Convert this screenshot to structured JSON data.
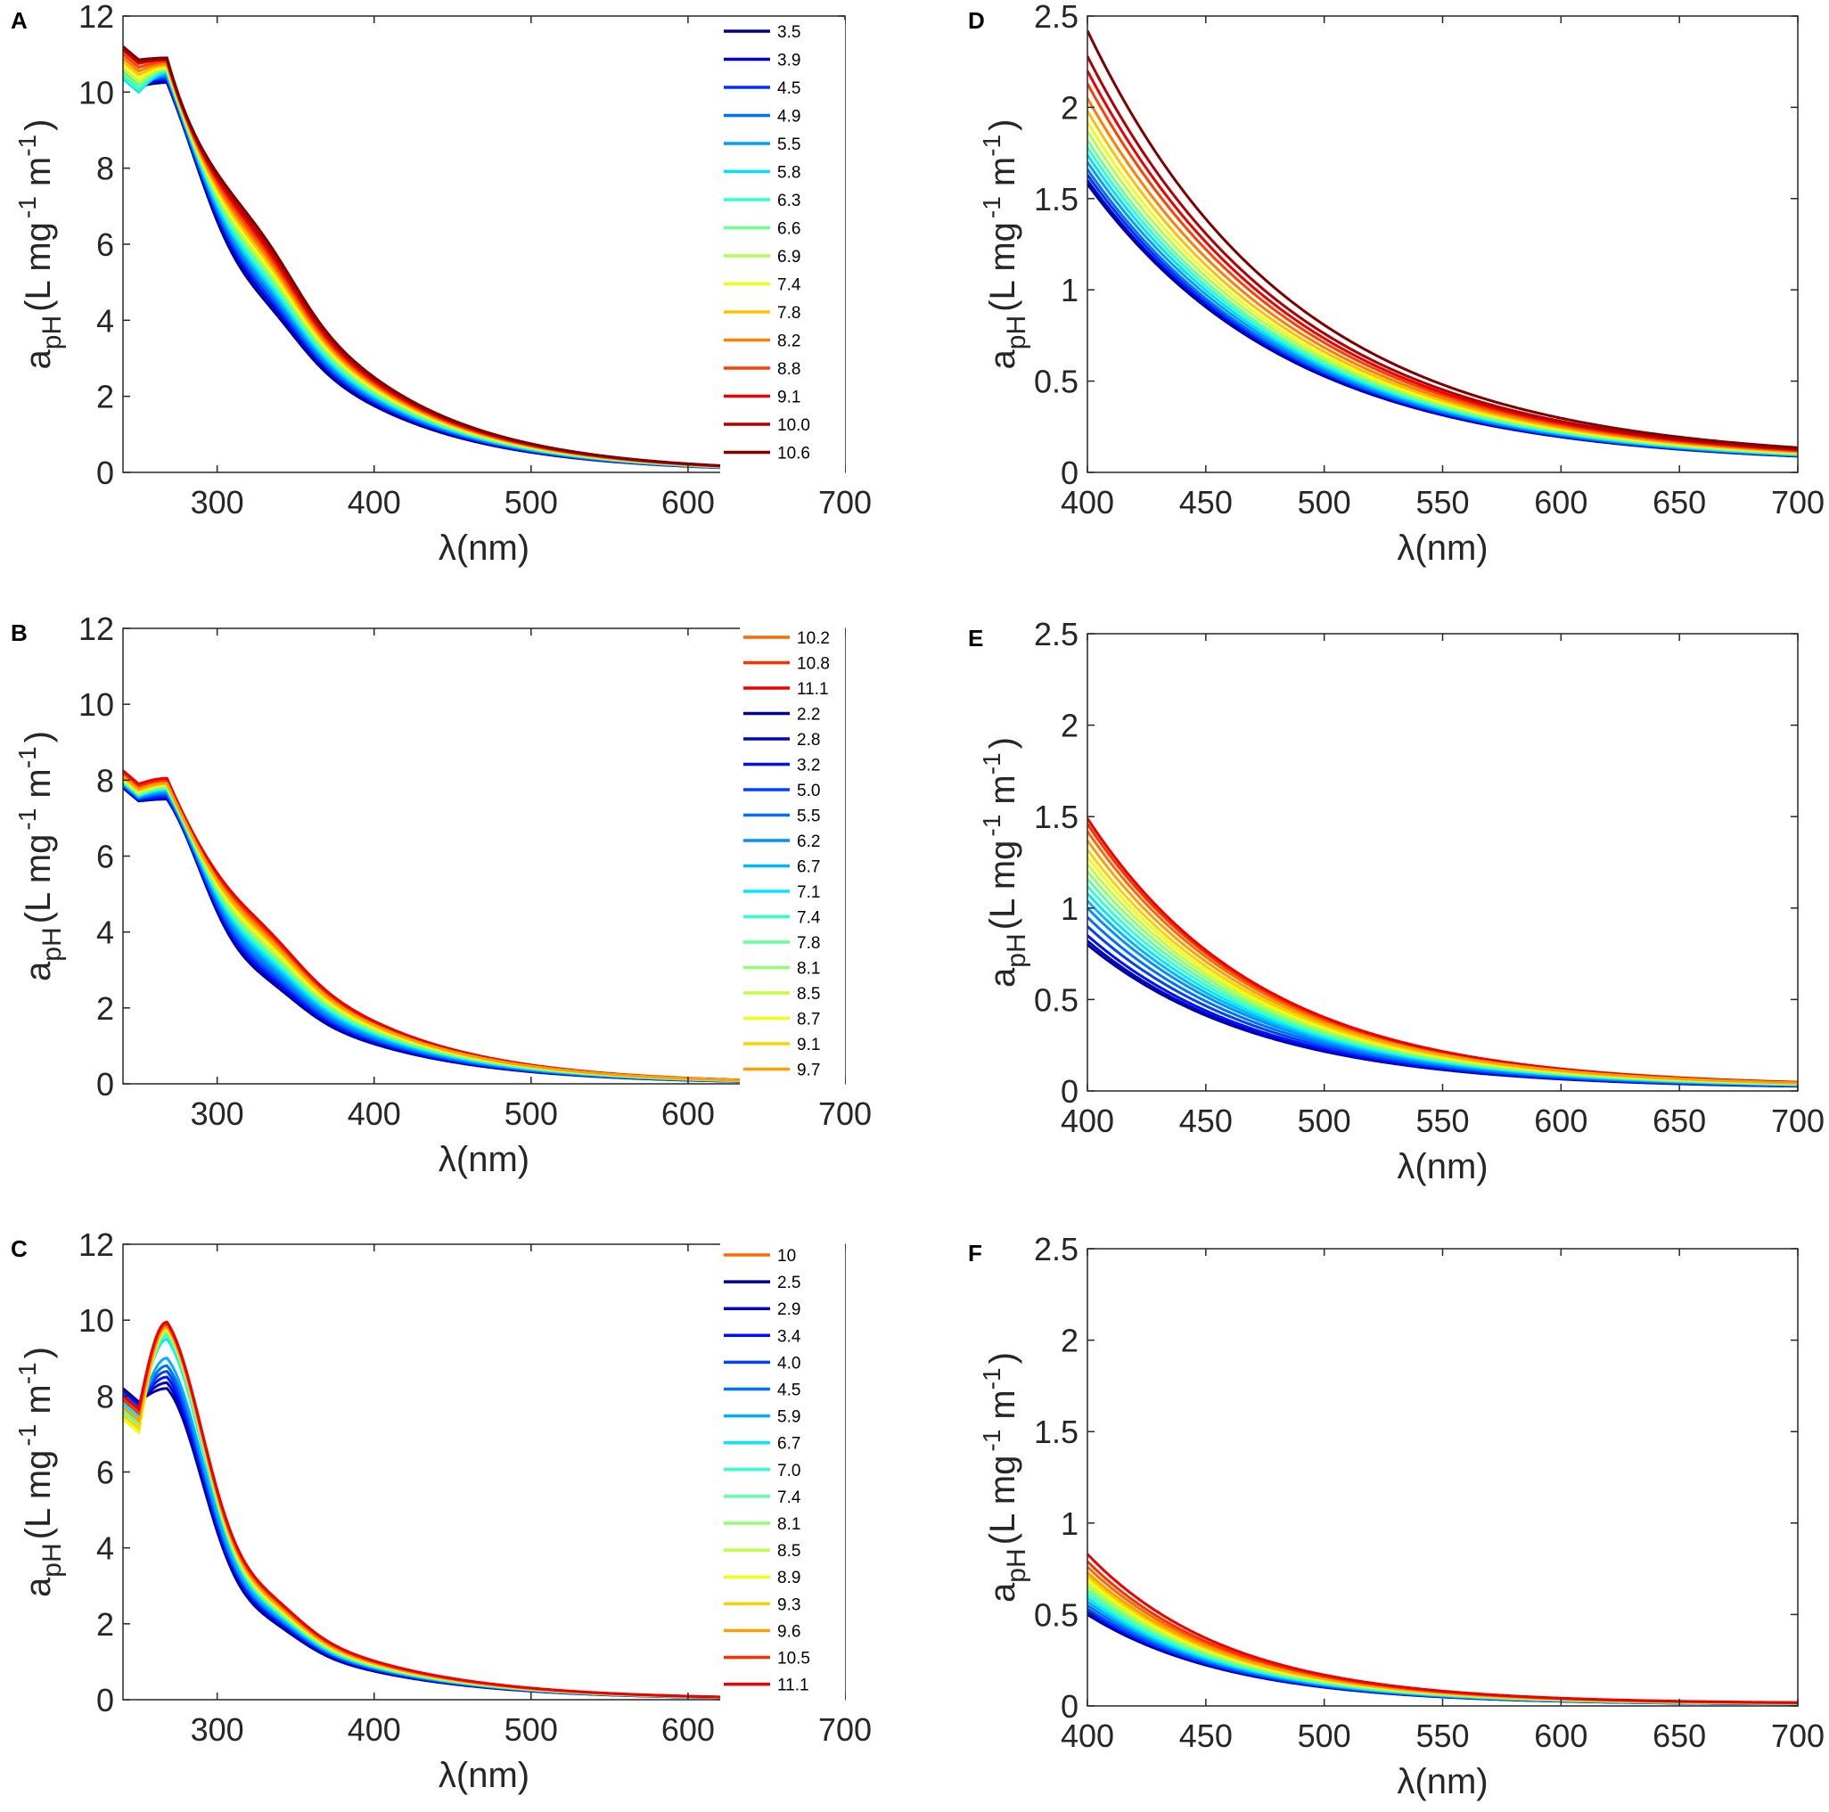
{
  "figure": {
    "panels": [
      "A",
      "B",
      "C",
      "D",
      "E",
      "F"
    ]
  },
  "chart_data": [
    {
      "id": "A",
      "panel_label": "A",
      "type": "line",
      "xlabel": "λ(nm)",
      "ylabel_main": "a",
      "ylabel_sub": "pH",
      "ylabel_units": "(L mg",
      "ylabel_sup1": "-1",
      "ylabel_m": " m",
      "ylabel_sup2": "-1",
      "ylabel_close": ")",
      "xlim": [
        240,
        700
      ],
      "ylim": [
        0,
        12
      ],
      "xticks": [
        300,
        400,
        500,
        600,
        700
      ],
      "yticks": [
        0,
        2,
        4,
        6,
        8,
        10,
        12
      ],
      "xtick_labels": [
        "300",
        "400",
        "500",
        "600",
        "700"
      ],
      "ytick_labels": [
        "0",
        "2",
        "4",
        "6",
        "8",
        "10",
        "12"
      ],
      "model": "uv",
      "legend_position": "top-right",
      "series": [
        {
          "name": "3.5",
          "color": "#00008f",
          "a240": 10.5,
          "peak": 10.25,
          "c400": 1.75
        },
        {
          "name": "3.9",
          "color": "#0000d9",
          "a240": 10.55,
          "peak": 10.3,
          "c400": 1.8
        },
        {
          "name": "4.5",
          "color": "#0030ff",
          "a240": 10.6,
          "peak": 10.35,
          "c400": 1.85
        },
        {
          "name": "4.9",
          "color": "#0070ff",
          "a240": 10.55,
          "peak": 10.4,
          "c400": 1.9
        },
        {
          "name": "5.5",
          "color": "#00a0ff",
          "a240": 10.4,
          "peak": 10.45,
          "c400": 1.95
        },
        {
          "name": "5.8",
          "color": "#00e0ff",
          "a240": 10.35,
          "peak": 10.5,
          "c400": 2.0
        },
        {
          "name": "6.3",
          "color": "#30ffd0",
          "a240": 10.4,
          "peak": 10.55,
          "c400": 2.05
        },
        {
          "name": "6.6",
          "color": "#70ff90",
          "a240": 10.5,
          "peak": 10.6,
          "c400": 2.1
        },
        {
          "name": "6.9",
          "color": "#b0ff50",
          "a240": 10.6,
          "peak": 10.6,
          "c400": 2.15
        },
        {
          "name": "7.4",
          "color": "#f0ff10",
          "a240": 10.7,
          "peak": 10.65,
          "c400": 2.2
        },
        {
          "name": "7.8",
          "color": "#ffc000",
          "a240": 10.8,
          "peak": 10.7,
          "c400": 2.25
        },
        {
          "name": "8.2",
          "color": "#ff8000",
          "a240": 10.9,
          "peak": 10.75,
          "c400": 2.3
        },
        {
          "name": "8.8",
          "color": "#ff4000",
          "a240": 11.0,
          "peak": 10.8,
          "c400": 2.35
        },
        {
          "name": "9.1",
          "color": "#ee0000",
          "a240": 11.1,
          "peak": 10.85,
          "c400": 2.4
        },
        {
          "name": "10.0",
          "color": "#b00000",
          "a240": 11.15,
          "peak": 10.85,
          "c400": 2.45
        },
        {
          "name": "10.6",
          "color": "#800000",
          "a240": 11.2,
          "peak": 10.9,
          "c400": 2.5
        }
      ]
    },
    {
      "id": "B",
      "panel_label": "B",
      "type": "line",
      "xlabel": "λ(nm)",
      "ylabel_main": "a",
      "ylabel_sub": "pH",
      "ylabel_units": "(L mg",
      "ylabel_sup1": "-1",
      "ylabel_m": " m",
      "ylabel_sup2": "-1",
      "ylabel_close": ")",
      "xlim": [
        240,
        700
      ],
      "ylim": [
        0,
        12
      ],
      "xticks": [
        300,
        400,
        500,
        600,
        700
      ],
      "yticks": [
        0,
        2,
        4,
        6,
        8,
        10,
        12
      ],
      "xtick_labels": [
        "300",
        "400",
        "500",
        "600",
        "700"
      ],
      "ytick_labels": [
        "0",
        "2",
        "4",
        "6",
        "8",
        "10",
        "12"
      ],
      "model": "uv",
      "legend_position": "top-right",
      "series": [
        {
          "name": "10.2",
          "color": "#ff6a00",
          "a240": 8.15,
          "peak": 7.95,
          "c400": 1.58
        },
        {
          "name": "10.8",
          "color": "#ff3000",
          "a240": 8.2,
          "peak": 8.0,
          "c400": 1.62
        },
        {
          "name": "11.1",
          "color": "#ee0000",
          "a240": 8.25,
          "peak": 8.05,
          "c400": 1.65
        },
        {
          "name": "2.2",
          "color": "#00008f",
          "a240": 7.8,
          "peak": 7.5,
          "c400": 1.05
        },
        {
          "name": "2.8",
          "color": "#0000cc",
          "a240": 7.82,
          "peak": 7.52,
          "c400": 1.08
        },
        {
          "name": "3.2",
          "color": "#0010ff",
          "a240": 7.84,
          "peak": 7.55,
          "c400": 1.11
        },
        {
          "name": "5.0",
          "color": "#0040ff",
          "a240": 7.86,
          "peak": 7.6,
          "c400": 1.15
        },
        {
          "name": "5.5",
          "color": "#0070ff",
          "a240": 7.88,
          "peak": 7.65,
          "c400": 1.19
        },
        {
          "name": "6.2",
          "color": "#0090ff",
          "a240": 7.9,
          "peak": 7.68,
          "c400": 1.23
        },
        {
          "name": "6.7",
          "color": "#00b8ff",
          "a240": 7.92,
          "peak": 7.72,
          "c400": 1.27
        },
        {
          "name": "7.1",
          "color": "#00e8ff",
          "a240": 7.94,
          "peak": 7.75,
          "c400": 1.31
        },
        {
          "name": "7.4",
          "color": "#30ffd0",
          "a240": 7.96,
          "peak": 7.78,
          "c400": 1.35
        },
        {
          "name": "7.8",
          "color": "#60ffa0",
          "a240": 7.98,
          "peak": 7.8,
          "c400": 1.38
        },
        {
          "name": "8.1",
          "color": "#90ff70",
          "a240": 8.0,
          "peak": 7.83,
          "c400": 1.42
        },
        {
          "name": "8.5",
          "color": "#c0ff40",
          "a240": 8.02,
          "peak": 7.86,
          "c400": 1.45
        },
        {
          "name": "8.7",
          "color": "#f0ff10",
          "a240": 8.05,
          "peak": 7.88,
          "c400": 1.49
        },
        {
          "name": "9.1",
          "color": "#ffd000",
          "a240": 8.08,
          "peak": 7.9,
          "c400": 1.52
        },
        {
          "name": "9.7",
          "color": "#ffa000",
          "a240": 8.1,
          "peak": 7.92,
          "c400": 1.55
        }
      ]
    },
    {
      "id": "C",
      "panel_label": "C",
      "type": "line",
      "xlabel": "λ(nm)",
      "ylabel_main": "a",
      "ylabel_sub": "pH",
      "ylabel_units": "(L mg",
      "ylabel_sup1": "-1",
      "ylabel_m": " m",
      "ylabel_sup2": "-1",
      "ylabel_close": ")",
      "xlim": [
        240,
        700
      ],
      "ylim": [
        0,
        12
      ],
      "xticks": [
        300,
        400,
        500,
        600,
        700
      ],
      "yticks": [
        0,
        2,
        4,
        6,
        8,
        10,
        12
      ],
      "xtick_labels": [
        "300",
        "400",
        "500",
        "600",
        "700"
      ],
      "ytick_labels": [
        "0",
        "2",
        "4",
        "6",
        "8",
        "10",
        "12"
      ],
      "model": "uv",
      "legend_position": "top-right",
      "series": [
        {
          "name": "10",
          "color": "#ff6a00",
          "a240": 7.8,
          "peak": 9.85,
          "c400": 0.98
        },
        {
          "name": "2.5",
          "color": "#00008f",
          "a240": 8.2,
          "peak": 8.2,
          "c400": 0.75
        },
        {
          "name": "2.9",
          "color": "#0000cc",
          "a240": 8.15,
          "peak": 8.35,
          "c400": 0.77
        },
        {
          "name": "3.4",
          "color": "#0010ff",
          "a240": 8.1,
          "peak": 8.5,
          "c400": 0.79
        },
        {
          "name": "4.0",
          "color": "#0040ff",
          "a240": 8.05,
          "peak": 8.65,
          "c400": 0.81
        },
        {
          "name": "4.5",
          "color": "#0070ff",
          "a240": 8.0,
          "peak": 8.8,
          "c400": 0.82
        },
        {
          "name": "5.9",
          "color": "#00b0ff",
          "a240": 7.9,
          "peak": 9.0,
          "c400": 0.84
        },
        {
          "name": "6.7",
          "color": "#00e8ff",
          "a240": 7.8,
          "peak": 9.5,
          "c400": 0.86
        },
        {
          "name": "7.0",
          "color": "#30ffd0",
          "a240": 7.7,
          "peak": 9.6,
          "c400": 0.88
        },
        {
          "name": "7.4",
          "color": "#60ffa0",
          "a240": 7.6,
          "peak": 9.65,
          "c400": 0.89
        },
        {
          "name": "8.1",
          "color": "#90ff70",
          "a240": 7.5,
          "peak": 9.7,
          "c400": 0.9
        },
        {
          "name": "8.5",
          "color": "#c0ff40",
          "a240": 7.4,
          "peak": 9.75,
          "c400": 0.92
        },
        {
          "name": "8.9",
          "color": "#f0ff10",
          "a240": 7.4,
          "peak": 9.78,
          "c400": 0.93
        },
        {
          "name": "9.3",
          "color": "#ffd000",
          "a240": 7.5,
          "peak": 9.8,
          "c400": 0.95
        },
        {
          "name": "9.6",
          "color": "#ffa000",
          "a240": 7.7,
          "peak": 9.82,
          "c400": 0.96
        },
        {
          "name": "10.5",
          "color": "#ff3000",
          "a240": 7.9,
          "peak": 9.9,
          "c400": 1.0
        },
        {
          "name": "11.1",
          "color": "#ee0000",
          "a240": 8.0,
          "peak": 9.95,
          "c400": 1.02
        }
      ]
    },
    {
      "id": "D",
      "panel_label": "D",
      "type": "line",
      "xlabel": "λ(nm)",
      "ylabel_main": "a",
      "ylabel_sub": "pH",
      "ylabel_units": "(L mg",
      "ylabel_sup1": "-1",
      "ylabel_m": " m",
      "ylabel_sup2": "-1",
      "ylabel_close": ")",
      "xlim": [
        400,
        700
      ],
      "ylim": [
        0,
        2.5
      ],
      "xticks": [
        400,
        450,
        500,
        550,
        600,
        650,
        700
      ],
      "yticks": [
        0,
        0.5,
        1,
        1.5,
        2,
        2.5
      ],
      "xtick_labels": [
        "400",
        "450",
        "500",
        "550",
        "600",
        "650",
        "700"
      ],
      "ytick_labels": [
        "0",
        "0.5",
        "1",
        "1.5",
        "2",
        "2.5"
      ],
      "model": "vis",
      "decay": 0.0115,
      "offset_frac": 0.025,
      "series": [
        {
          "name": "3.5",
          "color": "#00008f",
          "a400": 1.58
        },
        {
          "name": "3.9",
          "color": "#0000d9",
          "a400": 1.6
        },
        {
          "name": "4.5",
          "color": "#0030ff",
          "a400": 1.63
        },
        {
          "name": "4.9",
          "color": "#0070ff",
          "a400": 1.66
        },
        {
          "name": "5.5",
          "color": "#00a0ff",
          "a400": 1.7
        },
        {
          "name": "5.8",
          "color": "#00e0ff",
          "a400": 1.74
        },
        {
          "name": "6.3",
          "color": "#30ffd0",
          "a400": 1.78
        },
        {
          "name": "6.6",
          "color": "#70ff90",
          "a400": 1.82
        },
        {
          "name": "6.9",
          "color": "#b0ff50",
          "a400": 1.87
        },
        {
          "name": "7.4",
          "color": "#f0ff10",
          "a400": 1.92
        },
        {
          "name": "7.8",
          "color": "#ffc000",
          "a400": 1.98
        },
        {
          "name": "8.2",
          "color": "#ff8000",
          "a400": 2.05
        },
        {
          "name": "8.8",
          "color": "#ff4000",
          "a400": 2.13
        },
        {
          "name": "9.1",
          "color": "#ee0000",
          "a400": 2.2
        },
        {
          "name": "10.0",
          "color": "#b00000",
          "a400": 2.28
        },
        {
          "name": "10.6",
          "color": "#800000",
          "a400": 2.42
        }
      ]
    },
    {
      "id": "E",
      "panel_label": "E",
      "type": "line",
      "xlabel": "λ(nm)",
      "ylabel_main": "a",
      "ylabel_sub": "pH",
      "ylabel_units": "(L mg",
      "ylabel_sup1": "-1",
      "ylabel_m": " m",
      "ylabel_sup2": "-1",
      "ylabel_close": ")",
      "xlim": [
        400,
        700
      ],
      "ylim": [
        0,
        2.5
      ],
      "xticks": [
        400,
        450,
        500,
        550,
        600,
        650,
        700
      ],
      "yticks": [
        0,
        0.5,
        1,
        1.5,
        2,
        2.5
      ],
      "xtick_labels": [
        "400",
        "450",
        "500",
        "550",
        "600",
        "650",
        "700"
      ],
      "ytick_labels": [
        "0",
        "0.5",
        "1",
        "1.5",
        "2",
        "2.5"
      ],
      "model": "vis",
      "decay": 0.0135,
      "offset_frac": 0.015,
      "series": [
        {
          "name": "10.2",
          "color": "#ff6a00",
          "a400": 1.42
        },
        {
          "name": "10.8",
          "color": "#ff3000",
          "a400": 1.46
        },
        {
          "name": "11.1",
          "color": "#ee0000",
          "a400": 1.49
        },
        {
          "name": "2.2",
          "color": "#00008f",
          "a400": 0.8
        },
        {
          "name": "2.8",
          "color": "#0000cc",
          "a400": 0.82
        },
        {
          "name": "3.2",
          "color": "#0010ff",
          "a400": 0.85
        },
        {
          "name": "5.0",
          "color": "#0040ff",
          "a400": 0.9
        },
        {
          "name": "5.5",
          "color": "#0070ff",
          "a400": 0.95
        },
        {
          "name": "6.2",
          "color": "#0090ff",
          "a400": 1.0
        },
        {
          "name": "6.7",
          "color": "#00b8ff",
          "a400": 1.04
        },
        {
          "name": "7.1",
          "color": "#00e8ff",
          "a400": 1.08
        },
        {
          "name": "7.4",
          "color": "#30ffd0",
          "a400": 1.12
        },
        {
          "name": "7.8",
          "color": "#60ffa0",
          "a400": 1.16
        },
        {
          "name": "8.1",
          "color": "#90ff70",
          "a400": 1.2
        },
        {
          "name": "8.5",
          "color": "#c0ff40",
          "a400": 1.24
        },
        {
          "name": "8.7",
          "color": "#f0ff10",
          "a400": 1.28
        },
        {
          "name": "9.1",
          "color": "#ffd000",
          "a400": 1.32
        },
        {
          "name": "9.7",
          "color": "#ffa000",
          "a400": 1.37
        }
      ]
    },
    {
      "id": "F",
      "panel_label": "F",
      "type": "line",
      "xlabel": "λ(nm)",
      "ylabel_main": "a",
      "ylabel_sub": "pH",
      "ylabel_units": "(L mg",
      "ylabel_sup1": "-1",
      "ylabel_m": " m",
      "ylabel_sup2": "-1",
      "ylabel_close": ")",
      "xlim": [
        400,
        700
      ],
      "ylim": [
        0,
        2.5
      ],
      "xticks": [
        400,
        450,
        500,
        550,
        600,
        650,
        700
      ],
      "yticks": [
        0,
        0.5,
        1,
        1.5,
        2,
        2.5
      ],
      "xtick_labels": [
        "400",
        "450",
        "500",
        "550",
        "600",
        "650",
        "700"
      ],
      "ytick_labels": [
        "0",
        "0.5",
        "1",
        "1.5",
        "2",
        "2.5"
      ],
      "model": "vis",
      "decay": 0.0165,
      "offset_frac": 0.015,
      "series": [
        {
          "name": "10",
          "color": "#ff6a00",
          "a400": 0.76
        },
        {
          "name": "2.5",
          "color": "#00008f",
          "a400": 0.5
        },
        {
          "name": "2.9",
          "color": "#0000cc",
          "a400": 0.51
        },
        {
          "name": "3.4",
          "color": "#0010ff",
          "a400": 0.52
        },
        {
          "name": "4.0",
          "color": "#0040ff",
          "a400": 0.53
        },
        {
          "name": "4.5",
          "color": "#0070ff",
          "a400": 0.55
        },
        {
          "name": "5.9",
          "color": "#00b0ff",
          "a400": 0.57
        },
        {
          "name": "6.7",
          "color": "#00e8ff",
          "a400": 0.59
        },
        {
          "name": "7.0",
          "color": "#30ffd0",
          "a400": 0.61
        },
        {
          "name": "7.4",
          "color": "#60ffa0",
          "a400": 0.63
        },
        {
          "name": "8.1",
          "color": "#90ff70",
          "a400": 0.65
        },
        {
          "name": "8.5",
          "color": "#c0ff40",
          "a400": 0.67
        },
        {
          "name": "8.9",
          "color": "#f0ff10",
          "a400": 0.69
        },
        {
          "name": "9.3",
          "color": "#ffd000",
          "a400": 0.71
        },
        {
          "name": "9.6",
          "color": "#ffa000",
          "a400": 0.73
        },
        {
          "name": "10.5",
          "color": "#ff3000",
          "a400": 0.79
        },
        {
          "name": "11.1",
          "color": "#ee0000",
          "a400": 0.83
        }
      ]
    }
  ]
}
